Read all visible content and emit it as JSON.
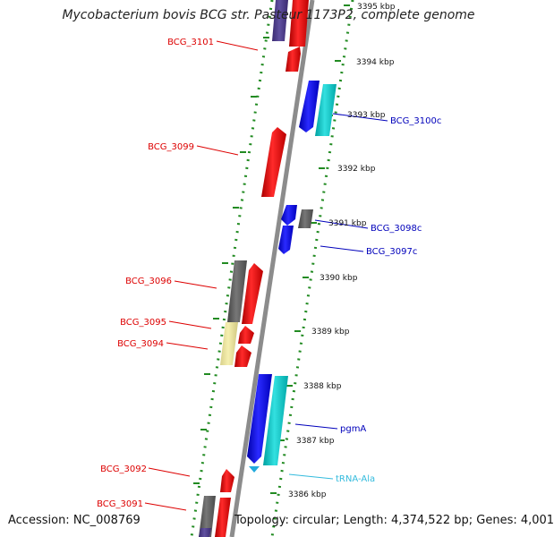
{
  "title": "Mycobacterium bovis BCG str. Pasteur 1173P2, complete genome",
  "footer": {
    "accession": "Accession: NC_008769",
    "summary": "Topology: circular; Length: 4,374,522 bp; Genes: 4,001"
  },
  "colors": {
    "backbone": "#8c8c8c",
    "ticks": "#228B22",
    "forward_label": "#dd0000",
    "reverse_label": "#0000bb",
    "trna_label": "#33bbdd"
  },
  "scale_labels": [
    {
      "kbp": 3395,
      "text": "3395 kbp"
    },
    {
      "kbp": 3394,
      "text": "3394 kbp"
    },
    {
      "kbp": 3393,
      "text": "3393 kbp"
    },
    {
      "kbp": 3392,
      "text": "3392 kbp"
    },
    {
      "kbp": 3391,
      "text": "3391 kbp"
    },
    {
      "kbp": 3390,
      "text": "3390 kbp"
    },
    {
      "kbp": 3389,
      "text": "3389 kbp"
    },
    {
      "kbp": 3388,
      "text": "3388 kbp"
    },
    {
      "kbp": 3387,
      "text": "3387 kbp"
    },
    {
      "kbp": 3386,
      "text": "3386 kbp"
    }
  ],
  "labels_left": [
    {
      "text": "BCG_3101"
    },
    {
      "text": "BCG_3099"
    },
    {
      "text": "BCG_3096"
    },
    {
      "text": "BCG_3095"
    },
    {
      "text": "BCG_3094"
    },
    {
      "text": "BCG_3092"
    },
    {
      "text": "BCG_3091"
    }
  ],
  "labels_right": [
    {
      "text": "BCG_3100c",
      "kind": "reverse"
    },
    {
      "text": "BCG_3098c",
      "kind": "reverse"
    },
    {
      "text": "BCG_3097c",
      "kind": "reverse"
    },
    {
      "text": "pgmA",
      "kind": "reverse"
    },
    {
      "text": "tRNA-Ala",
      "kind": "trna"
    }
  ]
}
